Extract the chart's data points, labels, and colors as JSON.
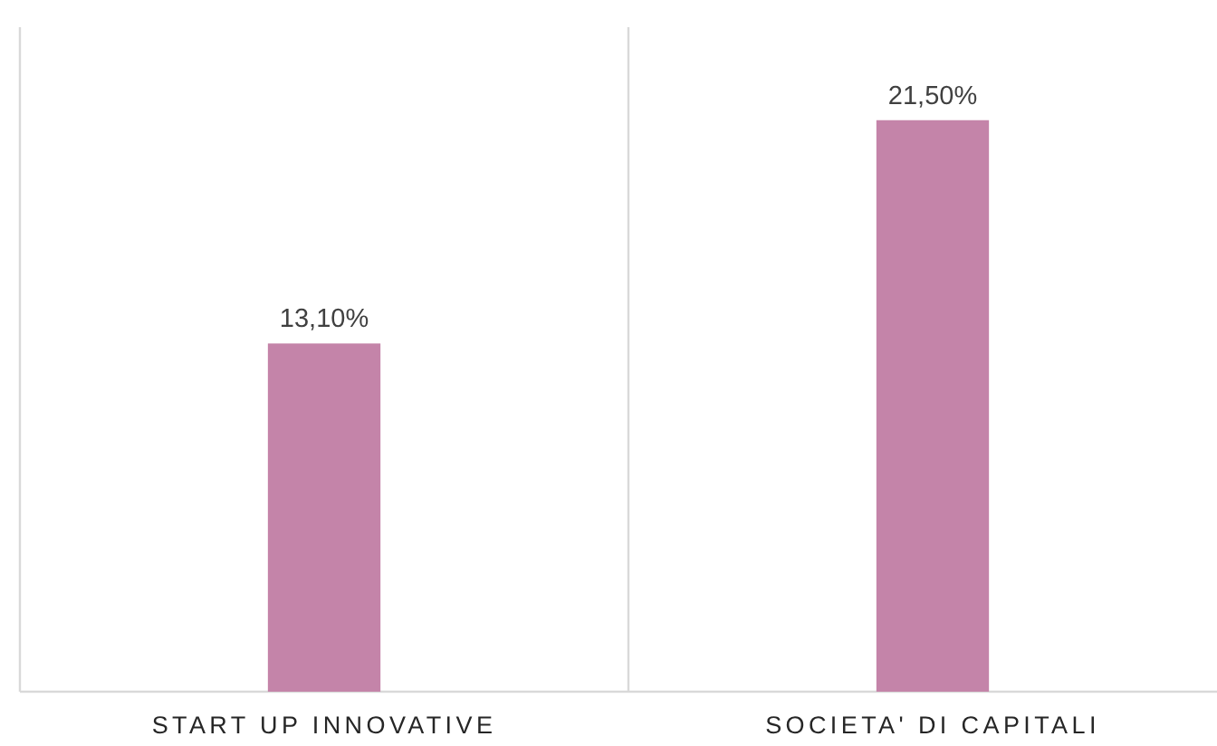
{
  "chart_data": {
    "type": "bar",
    "categories": [
      "START UP INNOVATIVE",
      "SOCIETA' DI CAPITALI"
    ],
    "values": [
      13.1,
      21.5
    ],
    "color": "#c484a9",
    "value_labels": [
      "13,10%",
      "21,50%"
    ],
    "ylim": [
      0,
      25
    ],
    "grid": "x"
  }
}
